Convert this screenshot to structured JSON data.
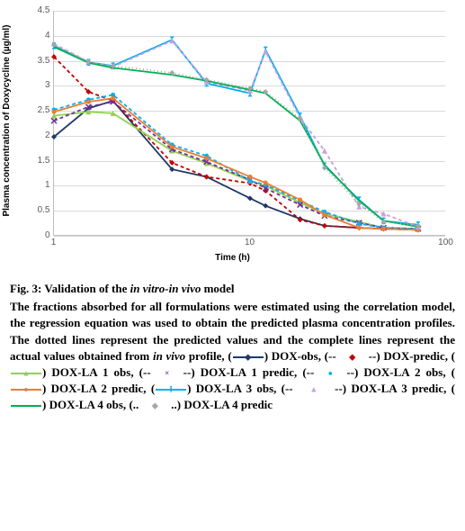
{
  "chart": {
    "type": "line",
    "xlabel": "Time (h)",
    "ylabel": "Plasma concentration of Doxycycline (µg/ml)",
    "x_scale": "log",
    "xlim": [
      1,
      100
    ],
    "ylim": [
      0,
      4.5
    ],
    "ytick_step": 0.5,
    "yticks": [
      0,
      0.5,
      1,
      1.5,
      2,
      2.5,
      3,
      3.5,
      4,
      4.5
    ],
    "xticks": [
      1,
      10,
      100
    ],
    "background_color": "#ffffff",
    "grid_color": "#d9d9d9",
    "axis_color": "#bfbfbf",
    "label_fontsize": 10,
    "tick_fontsize": 10,
    "tick_color": "#595959",
    "line_width": 1.8,
    "marker_size": 6,
    "dash_pattern": "4,3",
    "x_data": [
      1,
      1.5,
      2,
      4,
      6,
      10,
      12,
      18,
      24,
      36,
      48,
      72
    ],
    "series": [
      {
        "name": "DOX-obs",
        "color": "#203864",
        "style": "solid",
        "marker": "diamond",
        "y": [
          1.98,
          2.55,
          2.7,
          1.33,
          1.18,
          0.75,
          0.6,
          0.34,
          0.2,
          0.16,
          0.14,
          0.12
        ]
      },
      {
        "name": "DOX-predic",
        "color": "#c00000",
        "style": "dashed",
        "marker": "diamond",
        "y": [
          3.58,
          2.88,
          2.7,
          1.46,
          1.18,
          1.05,
          0.9,
          0.32,
          0.2,
          0.16,
          0.14,
          0.12
        ]
      },
      {
        "name": "DOX-LA1-obs",
        "color": "#92d050",
        "style": "solid",
        "marker": "triangle",
        "y": [
          2.4,
          2.48,
          2.45,
          1.7,
          1.45,
          1.1,
          1.0,
          0.66,
          0.44,
          0.28,
          0.16,
          0.14
        ]
      },
      {
        "name": "DOX-LA1-predic",
        "color": "#7030a0",
        "style": "dashed",
        "marker": "x",
        "y": [
          2.3,
          2.58,
          2.68,
          1.73,
          1.48,
          1.12,
          0.95,
          0.62,
          0.4,
          0.26,
          0.16,
          0.14
        ]
      },
      {
        "name": "DOX-LA2-obs",
        "color": "#00b0f0",
        "style": "dashed",
        "marker": "circle",
        "y": [
          2.52,
          2.72,
          2.82,
          1.82,
          1.6,
          1.1,
          1.02,
          0.7,
          0.48,
          0.24,
          0.16,
          0.14
        ]
      },
      {
        "name": "DOX-LA2-predic",
        "color": "#ed7d31",
        "style": "solid",
        "marker": "circle",
        "y": [
          2.48,
          2.68,
          2.75,
          1.78,
          1.55,
          1.18,
          1.06,
          0.72,
          0.42,
          0.16,
          0.14,
          0.12
        ]
      },
      {
        "name": "DOX-LA3-obs",
        "color": "#00b0f0",
        "style": "solid",
        "marker": "Ibar",
        "y": [
          3.8,
          3.47,
          3.4,
          3.92,
          3.05,
          2.85,
          3.72,
          2.4,
          1.4,
          0.72,
          0.3,
          0.22
        ]
      },
      {
        "name": "DOX-LA3-predic",
        "color": "#c9a0dc",
        "style": "dashed",
        "marker": "triangle",
        "y": [
          3.84,
          3.48,
          3.38,
          3.9,
          3.08,
          2.9,
          3.68,
          2.36,
          1.7,
          0.58,
          0.44,
          0.18
        ]
      },
      {
        "name": "DOX-LA4-obs",
        "color": "#00b050",
        "style": "solid",
        "marker": "none",
        "y": [
          3.78,
          3.46,
          3.36,
          3.22,
          3.1,
          2.92,
          2.85,
          2.3,
          1.42,
          0.7,
          0.3,
          0.18
        ]
      },
      {
        "name": "DOX-LA4-predic",
        "color": "#a6a6a6",
        "style": "dotted",
        "marker": "diamond",
        "y": [
          3.82,
          3.48,
          3.4,
          3.26,
          3.12,
          2.95,
          2.88,
          2.34,
          1.36,
          0.64,
          0.28,
          0.2
        ]
      }
    ]
  },
  "caption": {
    "fig_label": "Fig. 3: Validation of the ",
    "fig_label_italic": "in vitro-in vivo",
    "fig_label_tail": " model",
    "body_1": "The fractions absorbed for all formulations were estimated using the correlation model, the regression equation was used to obtain the predicted plasma concentration profiles. The dotted lines represent the predicted values and the complete lines represent the actual values obtained from ",
    "body_italic": "in vivo",
    "body_2": " profile, ",
    "legend_items": [
      {
        "pre": "(",
        "post": ") DOX-obs, ",
        "color": "#203864",
        "style": "solid",
        "marker": "◆"
      },
      {
        "pre": "(--",
        "post": "--) DOX-predic, ",
        "color": "#c00000",
        "style": "none",
        "marker": "◆"
      },
      {
        "pre": "(",
        "post": ") DOX-LA 1 obs, ",
        "color": "#92d050",
        "style": "solid",
        "marker": "▲"
      },
      {
        "pre": "(--",
        "post": "--) DOX-LA 1 predic, ",
        "color": "#7030a0",
        "style": "none",
        "marker": "×"
      },
      {
        "pre": "(--",
        "post": "--) DOX-LA 2 obs, ",
        "color": "#00b0f0",
        "style": "none",
        "marker": "●"
      },
      {
        "pre": "(",
        "post": ") DOX-LA 2 predic, ",
        "color": "#ed7d31",
        "style": "solid",
        "marker": "●"
      },
      {
        "pre": "(",
        "post": ") DOX-LA 3 obs, ",
        "color": "#00b0f0",
        "style": "solid",
        "marker": "I"
      },
      {
        "pre": "(-- ",
        "post": " --) DOX-LA 3 predic, ",
        "color": "#c9a0dc",
        "style": "none",
        "marker": "▲"
      },
      {
        "pre": "(",
        "post": ") DOX-LA 4 obs, ",
        "color": "#00b050",
        "style": "solid",
        "marker": ""
      },
      {
        "pre": "(..",
        "post": "..) DOX-LA 4 predic",
        "color": "#a6a6a6",
        "style": "none",
        "marker": "◆"
      }
    ]
  }
}
